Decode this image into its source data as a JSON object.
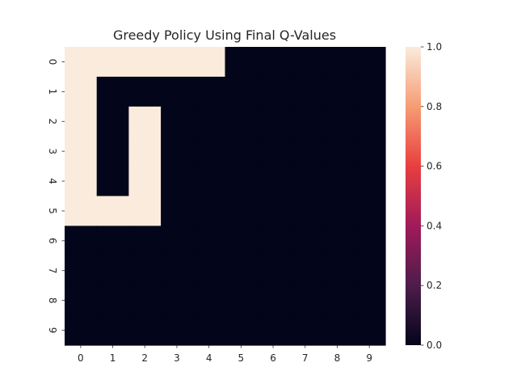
{
  "chart_data": {
    "type": "heatmap",
    "title": "Greedy Policy Using Final Q-Values",
    "x_tick_labels": [
      "0",
      "1",
      "2",
      "3",
      "4",
      "5",
      "6",
      "7",
      "8",
      "9"
    ],
    "y_tick_labels": [
      "0",
      "1",
      "2",
      "3",
      "4",
      "5",
      "6",
      "7",
      "8",
      "9"
    ],
    "values": [
      [
        1,
        1,
        1,
        1,
        1,
        0,
        0,
        0,
        0,
        0
      ],
      [
        1,
        0,
        0,
        0,
        0,
        0,
        0,
        0,
        0,
        0
      ],
      [
        1,
        0,
        1,
        0,
        0,
        0,
        0,
        0,
        0,
        0
      ],
      [
        1,
        0,
        1,
        0,
        0,
        0,
        0,
        0,
        0,
        0
      ],
      [
        1,
        0,
        1,
        0,
        0,
        0,
        0,
        0,
        0,
        0
      ],
      [
        1,
        1,
        1,
        0,
        0,
        0,
        0,
        0,
        0,
        0
      ],
      [
        0,
        0,
        0,
        0,
        0,
        0,
        0,
        0,
        0,
        0
      ],
      [
        0,
        0,
        0,
        0,
        0,
        0,
        0,
        0,
        0,
        0
      ],
      [
        0,
        0,
        0,
        0,
        0,
        0,
        0,
        0,
        0,
        0
      ],
      [
        0,
        0,
        0,
        0,
        0,
        0,
        0,
        0,
        0,
        0
      ]
    ],
    "colorbar": {
      "range": [
        0.0,
        1.0
      ],
      "ticks": [
        "0.0",
        "0.2",
        "0.4",
        "0.6",
        "0.8",
        "1.0"
      ],
      "colormap": "rocket",
      "colors": [
        "#03051a",
        "#4c1d4b",
        "#a11a5b",
        "#e83f3f",
        "#f69c73",
        "#faebdd"
      ]
    },
    "grid": false,
    "legend": "colorbar-right"
  }
}
